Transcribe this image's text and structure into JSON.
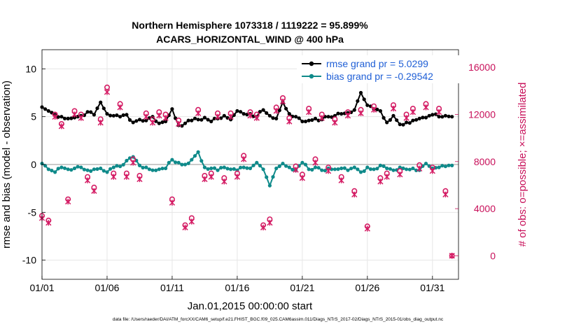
{
  "chart_data": {
    "type": "line",
    "title": "Northern Hemisphere 1073318 / 1119222 = 95.899%",
    "subtitle": "ACARS_HORIZONTAL_WIND @ 400 hPa",
    "xlabel": "Jan.01,2015 00:00:00 start",
    "ylabel": "rmse and bias (model - observation)",
    "ylabel_right": "# of obs: o=possible; ×=assimilated",
    "xlim": [
      0,
      32
    ],
    "ylim": [
      -12,
      12
    ],
    "ylim_right": [
      -2000,
      17500
    ],
    "x_ticks": [
      0,
      5,
      10,
      15,
      20,
      25,
      30
    ],
    "x_tick_labels": [
      "01/01",
      "01/06",
      "01/11",
      "01/16",
      "01/21",
      "01/26",
      "01/31"
    ],
    "y_ticks": [
      -10,
      -5,
      0,
      5,
      10
    ],
    "y_tick_labels": [
      "-10",
      "-5",
      "0",
      "5",
      "10"
    ],
    "y_ticks_right": [
      0,
      4000,
      8000,
      12000,
      16000
    ],
    "y_tick_labels_right": [
      "0",
      "4000",
      "8000",
      "12000",
      "16000"
    ],
    "grid": true,
    "legend_position": "top-right",
    "series": [
      {
        "name": "rmse grand pr = 5.0299",
        "axis": "left",
        "color": "#000000",
        "keyframes": [
          [
            0,
            6
          ],
          [
            0.5,
            5.6
          ],
          [
            1,
            5.2
          ],
          [
            1.5,
            5.0
          ],
          [
            2,
            4.8
          ],
          [
            2.5,
            4.9
          ],
          [
            3,
            5.1
          ],
          [
            3.5,
            5.5
          ],
          [
            4,
            5.2
          ],
          [
            4.5,
            6.5
          ],
          [
            5,
            5.3
          ],
          [
            5.5,
            5.1
          ],
          [
            6,
            5.0
          ],
          [
            6.5,
            5.2
          ],
          [
            7,
            4.4
          ],
          [
            7.5,
            4.7
          ],
          [
            8,
            4.6
          ],
          [
            8.5,
            5.0
          ],
          [
            9,
            4.3
          ],
          [
            9.5,
            4.5
          ],
          [
            10,
            5.8
          ],
          [
            10.5,
            4.1
          ],
          [
            11,
            4.3
          ],
          [
            11.5,
            4.6
          ],
          [
            12,
            4.7
          ],
          [
            12.5,
            4.9
          ],
          [
            13,
            4.5
          ],
          [
            13.5,
            4.8
          ],
          [
            14,
            5.1
          ],
          [
            14.5,
            4.7
          ],
          [
            15,
            5.6
          ],
          [
            15.5,
            5.3
          ],
          [
            16,
            5.3
          ],
          [
            16.5,
            5.0
          ],
          [
            17,
            5.7
          ],
          [
            17.5,
            5.1
          ],
          [
            18,
            4.8
          ],
          [
            18.5,
            6.5
          ],
          [
            19,
            5.3
          ],
          [
            19.5,
            5.0
          ],
          [
            20,
            4.5
          ],
          [
            20.5,
            4.6
          ],
          [
            21,
            4.8
          ],
          [
            21.5,
            4.7
          ],
          [
            22,
            5.0
          ],
          [
            22.5,
            5.1
          ],
          [
            23,
            5.3
          ],
          [
            23.5,
            5.4
          ],
          [
            24,
            5.7
          ],
          [
            24.5,
            7.5
          ],
          [
            25,
            6.2
          ],
          [
            25.5,
            5.8
          ],
          [
            26,
            5.6
          ],
          [
            26.5,
            4.4
          ],
          [
            27,
            5.1
          ],
          [
            27.5,
            4.2
          ],
          [
            28,
            4.4
          ],
          [
            28.5,
            4.6
          ],
          [
            29,
            4.8
          ],
          [
            29.5,
            4.9
          ],
          [
            30,
            5.2
          ],
          [
            30.5,
            5.0
          ],
          [
            31,
            5.1
          ],
          [
            31.5,
            5.0
          ]
        ]
      },
      {
        "name": "bias grand pr = -0.29542",
        "axis": "left",
        "color": "#0f8a8a",
        "keyframes": [
          [
            0,
            0.1
          ],
          [
            0.5,
            -0.5
          ],
          [
            1,
            -0.8
          ],
          [
            1.5,
            -0.3
          ],
          [
            2,
            -0.5
          ],
          [
            2.5,
            -0.4
          ],
          [
            3,
            -0.3
          ],
          [
            3.5,
            -0.6
          ],
          [
            4,
            -0.5
          ],
          [
            4.5,
            -0.4
          ],
          [
            5,
            -0.8
          ],
          [
            5.5,
            -0.3
          ],
          [
            6,
            -0.2
          ],
          [
            6.5,
            0.4
          ],
          [
            7,
            0.8
          ],
          [
            7.5,
            -0.1
          ],
          [
            8,
            -0.3
          ],
          [
            8.5,
            -0.6
          ],
          [
            9,
            -0.5
          ],
          [
            9.5,
            -0.4
          ],
          [
            10,
            0.5
          ],
          [
            10.5,
            0.2
          ],
          [
            11,
            0.0
          ],
          [
            11.5,
            0.5
          ],
          [
            12,
            1.3
          ],
          [
            12.5,
            -0.3
          ],
          [
            13,
            -0.4
          ],
          [
            13.5,
            -0.6
          ],
          [
            14,
            -0.3
          ],
          [
            14.5,
            -0.5
          ],
          [
            15,
            -0.6
          ],
          [
            15.5,
            -0.3
          ],
          [
            16,
            -0.4
          ],
          [
            16.5,
            0.2
          ],
          [
            17,
            -0.5
          ],
          [
            17.5,
            -2.2
          ],
          [
            18,
            -0.4
          ],
          [
            18.5,
            0.1
          ],
          [
            19,
            -0.3
          ],
          [
            19.5,
            -0.6
          ],
          [
            20,
            0.2
          ],
          [
            20.5,
            -0.5
          ],
          [
            21,
            -0.3
          ],
          [
            21.5,
            -0.6
          ],
          [
            22,
            -0.4
          ],
          [
            22.5,
            -0.5
          ],
          [
            23,
            -0.4
          ],
          [
            23.5,
            -0.6
          ],
          [
            24,
            -0.3
          ],
          [
            24.5,
            -0.8
          ],
          [
            25,
            -0.3
          ],
          [
            25.5,
            -0.5
          ],
          [
            26,
            -0.1
          ],
          [
            26.5,
            -0.4
          ],
          [
            27,
            -0.6
          ],
          [
            27.5,
            -0.3
          ],
          [
            28,
            -0.5
          ],
          [
            28.5,
            -0.4
          ],
          [
            29,
            -0.6
          ],
          [
            29.5,
            0.1
          ],
          [
            30,
            -0.4
          ],
          [
            30.5,
            -0.3
          ],
          [
            31,
            -0.2
          ],
          [
            31.5,
            -0.1
          ]
        ]
      },
      {
        "name": "possible obs",
        "axis": "right",
        "marker": "o",
        "color": "#d41c64",
        "points": [
          [
            0,
            3400
          ],
          [
            0.5,
            3000
          ],
          [
            1,
            12000
          ],
          [
            1.5,
            11200
          ],
          [
            2,
            4800
          ],
          [
            2.5,
            12300
          ],
          [
            3,
            12000
          ],
          [
            3.5,
            6700
          ],
          [
            4,
            5800
          ],
          [
            4.5,
            11600
          ],
          [
            5,
            14300
          ],
          [
            5.5,
            7000
          ],
          [
            6,
            12900
          ],
          [
            6.5,
            7000
          ],
          [
            7,
            8200
          ],
          [
            7.5,
            6800
          ],
          [
            8,
            12100
          ],
          [
            8.5,
            11600
          ],
          [
            9,
            12200
          ],
          [
            9.5,
            12000
          ],
          [
            10,
            4800
          ],
          [
            10.5,
            11500
          ],
          [
            11,
            2600
          ],
          [
            11.5,
            3200
          ],
          [
            12,
            12400
          ],
          [
            12.5,
            6800
          ],
          [
            13,
            7000
          ],
          [
            13.5,
            12100
          ],
          [
            14,
            6600
          ],
          [
            14.5,
            12100
          ],
          [
            15,
            7000
          ],
          [
            15.5,
            8500
          ],
          [
            16,
            12200
          ],
          [
            16.5,
            12000
          ],
          [
            17,
            2600
          ],
          [
            17.5,
            3100
          ],
          [
            18,
            12600
          ],
          [
            18.5,
            13400
          ],
          [
            19,
            11700
          ],
          [
            19.5,
            7600
          ],
          [
            20,
            6900
          ],
          [
            20.5,
            12500
          ],
          [
            21,
            8200
          ],
          [
            21.5,
            12000
          ],
          [
            22,
            7500
          ],
          [
            22.5,
            11600
          ],
          [
            23,
            6700
          ],
          [
            23.5,
            12200
          ],
          [
            24,
            5500
          ],
          [
            24.5,
            12400
          ],
          [
            25,
            2500
          ],
          [
            25.5,
            12700
          ],
          [
            26,
            6600
          ],
          [
            26.5,
            7000
          ],
          [
            27,
            12800
          ],
          [
            27.5,
            7200
          ],
          [
            28,
            12000
          ],
          [
            28.5,
            12500
          ],
          [
            29,
            7700
          ],
          [
            29.5,
            12900
          ],
          [
            30,
            7500
          ],
          [
            30.5,
            12500
          ],
          [
            31,
            5500
          ],
          [
            31.5,
            0
          ]
        ]
      },
      {
        "name": "assimilated obs",
        "axis": "right",
        "marker": "x",
        "color": "#d41c64",
        "points": [
          [
            0,
            3200
          ],
          [
            0.5,
            2800
          ],
          [
            1,
            11800
          ],
          [
            1.5,
            11000
          ],
          [
            2,
            4600
          ],
          [
            2.5,
            12000
          ],
          [
            3,
            11700
          ],
          [
            3.5,
            6400
          ],
          [
            4,
            5500
          ],
          [
            4.5,
            11300
          ],
          [
            5,
            13900
          ],
          [
            5.5,
            6700
          ],
          [
            6,
            12600
          ],
          [
            6.5,
            6700
          ],
          [
            7,
            7900
          ],
          [
            7.5,
            6500
          ],
          [
            8,
            11800
          ],
          [
            8.5,
            11300
          ],
          [
            9,
            11900
          ],
          [
            9.5,
            11700
          ],
          [
            10,
            4500
          ],
          [
            10.5,
            11200
          ],
          [
            11,
            2400
          ],
          [
            11.5,
            2900
          ],
          [
            12,
            12100
          ],
          [
            12.5,
            6500
          ],
          [
            13,
            6700
          ],
          [
            13.5,
            11800
          ],
          [
            14,
            6300
          ],
          [
            14.5,
            11800
          ],
          [
            15,
            6700
          ],
          [
            15.5,
            8200
          ],
          [
            16,
            11900
          ],
          [
            16.5,
            11700
          ],
          [
            17,
            2400
          ],
          [
            17.5,
            2800
          ],
          [
            18,
            12300
          ],
          [
            18.5,
            13100
          ],
          [
            19,
            11400
          ],
          [
            19.5,
            7300
          ],
          [
            20,
            6600
          ],
          [
            20.5,
            12200
          ],
          [
            21,
            7900
          ],
          [
            21.5,
            11700
          ],
          [
            22,
            7200
          ],
          [
            22.5,
            11300
          ],
          [
            23,
            6400
          ],
          [
            23.5,
            11900
          ],
          [
            24,
            5200
          ],
          [
            24.5,
            12100
          ],
          [
            25,
            2300
          ],
          [
            25.5,
            12400
          ],
          [
            26,
            6300
          ],
          [
            26.5,
            6700
          ],
          [
            27,
            12500
          ],
          [
            27.5,
            6900
          ],
          [
            28,
            11700
          ],
          [
            28.5,
            12200
          ],
          [
            29,
            7400
          ],
          [
            29.5,
            12600
          ],
          [
            30,
            7200
          ],
          [
            30.5,
            12200
          ],
          [
            31,
            5200
          ],
          [
            31.5,
            0
          ]
        ]
      }
    ]
  },
  "footnote": "data file: /Users/raeder/DAI/ATM_forcXX/CAM6_setup/f.e21.FHIST_BGC.f09_025.CAM6assim.011/Diags_NTrS_2017-02/Diags_NTrS_2015-01/obs_diag_output.nc"
}
